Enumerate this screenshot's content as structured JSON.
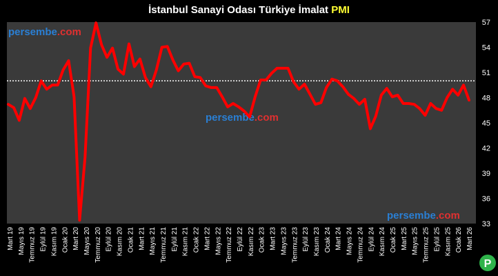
{
  "title": {
    "main": "İstanbul Sanayi Odası Türkiye İmalat",
    "highlight": "PMI"
  },
  "watermark": {
    "brand_part1": "persembe",
    "brand_part2": ".com"
  },
  "logo": {
    "letter": "P"
  },
  "colors": {
    "background": "#000000",
    "plot_background": "#3a3a3a",
    "grid": "#555555",
    "line": "#ff0000",
    "threshold": "#ffffff",
    "watermark_blue": "#2a7fd4",
    "watermark_red": "#e03030",
    "title_highlight": "#ffff33",
    "logo_bg": "#2fb34a"
  },
  "chart_data": {
    "type": "line",
    "title": "İstanbul Sanayi Odası Türkiye İmalat PMI",
    "xlabel": "",
    "ylabel": "",
    "ylim": [
      33,
      57
    ],
    "y_ticks": [
      33,
      36,
      39,
      42,
      45,
      48,
      51,
      54,
      57
    ],
    "threshold": 50,
    "grid": false,
    "x_tick_labels": [
      "Mart 19",
      "Mayıs 19",
      "Temmuz 19",
      "Eylül 19",
      "Kasım 19",
      "Ocak 20",
      "Mart 20",
      "Mayıs 20",
      "Temmuz 20",
      "Eylül 20",
      "Kasım 20",
      "Ocak 21",
      "Mart 21",
      "Mayıs 21",
      "Temmuz 21",
      "Eylül 21",
      "Kasım 21",
      "Ocak 22",
      "Mart 22",
      "Mayıs 22",
      "Temmuz 22",
      "Eylül 22",
      "Kasım 22",
      "Ocak 23",
      "Mart 23",
      "Mayıs 23",
      "Temmuz 23",
      "Eylül 23",
      "Kasım 23",
      "Ocak 24",
      "Mart 24",
      "Mayıs 24",
      "Temmuz 24",
      "Eylül 24",
      "Kasım 24",
      "Ocak 25",
      "Mart 25",
      "Mayıs 25",
      "Temmuz 25",
      "Eylül 25",
      "Kasım 25",
      "Ocak 26",
      "Mart 26"
    ],
    "x": [
      "Mar 19",
      "Apr 19",
      "May 19",
      "Jun 19",
      "Jul 19",
      "Aug 19",
      "Sep 19",
      "Oct 19",
      "Nov 19",
      "Dec 19",
      "Jan 20",
      "Feb 20",
      "Mar 20",
      "Apr 20",
      "May 20",
      "Jun 20",
      "Jul 20",
      "Aug 20",
      "Sep 20",
      "Oct 20",
      "Nov 20",
      "Dec 20",
      "Jan 21",
      "Feb 21",
      "Mar 21",
      "Apr 21",
      "May 21",
      "Jun 21",
      "Jul 21",
      "Aug 21",
      "Sep 21",
      "Oct 21",
      "Nov 21",
      "Dec 21",
      "Jan 22",
      "Feb 22",
      "Mar 22",
      "Apr 22",
      "May 22",
      "Jun 22",
      "Jul 22",
      "Aug 22",
      "Sep 22",
      "Oct 22",
      "Nov 22",
      "Dec 22",
      "Jan 23",
      "Feb 23",
      "Mar 23",
      "Apr 23",
      "May 23",
      "Jun 23",
      "Jul 23",
      "Aug 23",
      "Sep 23",
      "Oct 23",
      "Nov 23",
      "Dec 23",
      "Jan 24",
      "Feb 24",
      "Mar 24",
      "Apr 24",
      "May 24",
      "Jun 24",
      "Jul 24",
      "Aug 24",
      "Sep 24",
      "Oct 24",
      "Nov 24",
      "Dec 24",
      "Jan 25",
      "Feb 25",
      "Mar 25",
      "Apr 25",
      "May 25",
      "Jun 25",
      "Jul 25",
      "Aug 25",
      "Sep 25",
      "Oct 25",
      "Nov 25",
      "Dec 25",
      "Jan 26",
      "Feb 26",
      "Mar 26"
    ],
    "series": [
      {
        "values": [
          47.2,
          46.8,
          45.3,
          47.9,
          46.7,
          48.0,
          50.0,
          49.0,
          49.5,
          49.5,
          51.3,
          52.4,
          48.1,
          33.4,
          40.9,
          53.9,
          56.9,
          54.3,
          52.8,
          53.9,
          51.4,
          50.8,
          54.4,
          51.7,
          52.6,
          50.4,
          49.3,
          51.3,
          54.0,
          54.1,
          52.5,
          51.2,
          52.0,
          52.1,
          50.5,
          50.4,
          49.4,
          49.2,
          49.2,
          48.1,
          46.9,
          47.3,
          46.9,
          46.4,
          45.7,
          48.1,
          50.1,
          50.1,
          50.9,
          51.5,
          51.5,
          51.5,
          49.9,
          49.0,
          49.6,
          48.4,
          47.2,
          47.4,
          49.2,
          50.2,
          50.0,
          49.3,
          48.4,
          47.9,
          47.2,
          47.8,
          44.3,
          45.8,
          48.3,
          49.1,
          48.1,
          48.3,
          47.3,
          47.3,
          47.2,
          46.7,
          45.9,
          47.3,
          46.7,
          46.5,
          48.0,
          49.0,
          48.3,
          49.5,
          47.7
        ],
        "color": "#ff0000"
      }
    ]
  }
}
